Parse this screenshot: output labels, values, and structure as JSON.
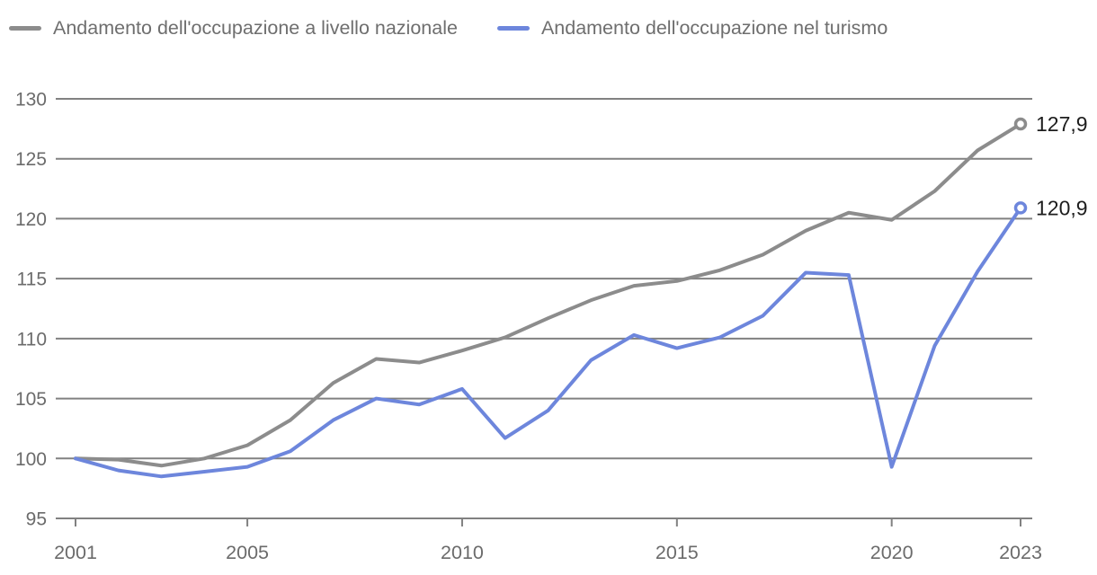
{
  "legend": {
    "items": [
      {
        "label": "Andamento dell'occupazione a livello nazionale",
        "color": "#8c8c8c"
      },
      {
        "label": "Andamento dell'occupazione nel turismo",
        "color": "#6d86dc"
      }
    ]
  },
  "chart_data": {
    "type": "line",
    "x": [
      2001,
      2002,
      2003,
      2004,
      2005,
      2006,
      2007,
      2008,
      2009,
      2010,
      2011,
      2012,
      2013,
      2014,
      2015,
      2016,
      2017,
      2018,
      2019,
      2020,
      2021,
      2022,
      2023
    ],
    "series": [
      {
        "name": "Andamento dell'occupazione a livello nazionale",
        "color": "#8c8c8c",
        "values": [
          100,
          99.9,
          99.4,
          100,
          101.1,
          103.2,
          106.3,
          108.3,
          108,
          109,
          110.1,
          111.7,
          113.2,
          114.4,
          114.8,
          115.7,
          117,
          119,
          120.5,
          119.9,
          122.3,
          125.7,
          127.9
        ],
        "end_label": "127,9"
      },
      {
        "name": "Andamento dell'occupazione nel turismo",
        "color": "#6d86dc",
        "values": [
          100,
          99,
          98.5,
          98.9,
          99.3,
          100.6,
          103.2,
          105,
          104.5,
          105.8,
          101.7,
          104,
          108.2,
          110.3,
          109.2,
          110.1,
          111.9,
          115.5,
          115.3,
          99.3,
          109.4,
          115.6,
          120.9
        ],
        "end_label": "120,9"
      }
    ],
    "ylim": [
      95,
      130
    ],
    "y_ticks": [
      95,
      100,
      105,
      110,
      115,
      120,
      125,
      130
    ],
    "x_ticks": [
      2001,
      2005,
      2010,
      2015,
      2020,
      2023
    ],
    "grid": "horizontal",
    "legend_position": "top"
  },
  "colors": {
    "background": "#ffffff",
    "grid": "#818181",
    "tick_label": "#6b6b6b",
    "legend_text": "#6e6e6e",
    "end_label_text": "#1d1d1d",
    "marker_fill": "#ffffff"
  }
}
